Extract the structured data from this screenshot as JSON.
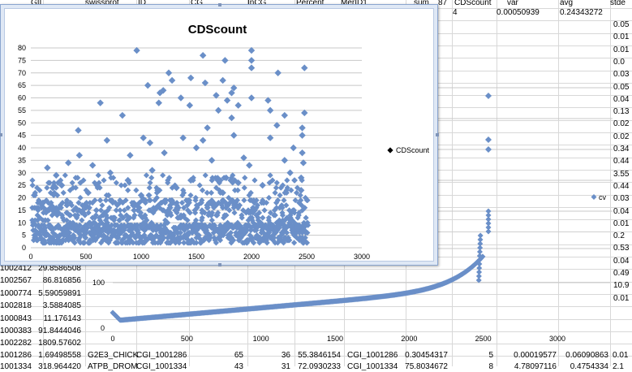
{
  "sheet": {
    "header_cells": [
      "GII",
      "swissprot",
      "ID",
      "CG",
      "InCG",
      "Percent",
      "MerID1",
      "sum",
      "87",
      "CDScount",
      "var",
      "avg",
      "stde"
    ],
    "top_row": {
      "cdscount": "4",
      "var": "0.00050939",
      "avg": "0.24343272"
    },
    "right_col": [
      "0.05",
      "0.01",
      "0.01",
      "0.0",
      "0.03",
      "0.05",
      "0.04",
      "0.13",
      "0.02",
      "0.02",
      "0.34",
      "0.44",
      "3.55",
      "0.44",
      "0.03",
      "0.04",
      "0.01",
      "0.2",
      "0.53",
      "0.04",
      "0.49",
      "10.9",
      "0.01"
    ],
    "left_rows": [
      {
        "a": "1002412",
        "b": "29.8586508"
      },
      {
        "a": "1002567",
        "b": "86.816856"
      },
      {
        "a": "1000774",
        "b": "5.59059891"
      },
      {
        "a": "1002818",
        "b": "3.5884085"
      },
      {
        "a": "1000843",
        "b": "11.176143"
      },
      {
        "a": "1000383",
        "b": "91.8444046"
      },
      {
        "a": "1002282",
        "b": "1809.57602"
      }
    ],
    "bottom_row": [
      "1001286",
      "1.69498558",
      "G2E3_CHICK",
      "CGI_1001286",
      "65",
      "36",
      "55.3846154",
      "CGI_1001286",
      "0.30454317",
      "5",
      "0.00019577",
      "0.06090863",
      "0.01"
    ],
    "bottom_row2": [
      "1001334",
      "318.964420",
      "ATPB_DROM",
      "CGI_1001334",
      "43",
      "31",
      "72.0930233",
      "CGI_1001334",
      "75.8034672",
      "8",
      "4.78097116",
      "0.4754334",
      "2.1"
    ]
  },
  "chart_data": [
    {
      "type": "scatter",
      "title": "CDScount",
      "series": [
        {
          "name": "CDScount",
          "color": "#6a8fc8"
        }
      ],
      "xlim": [
        0,
        3000
      ],
      "ylim": [
        0,
        80
      ],
      "x_ticks": [
        0,
        500,
        1000,
        1500,
        2000,
        2500,
        3000
      ],
      "y_ticks": [
        0,
        5,
        10,
        15,
        20,
        25,
        30,
        35,
        40,
        45,
        50,
        55,
        60,
        65,
        70,
        75,
        80
      ],
      "grid": true,
      "legend": "right",
      "n_points": 2500,
      "outliers": [
        [
          960,
          79
        ],
        [
          2000,
          79
        ],
        [
          1560,
          77
        ],
        [
          1760,
          75
        ],
        [
          2000,
          75
        ],
        [
          2480,
          72
        ],
        [
          2000,
          72
        ],
        [
          1250,
          70
        ],
        [
          2240,
          70
        ],
        [
          1450,
          68
        ],
        [
          1280,
          67
        ],
        [
          1740,
          67
        ],
        [
          1580,
          66
        ],
        [
          1060,
          65
        ],
        [
          1840,
          64
        ],
        [
          1200,
          63
        ],
        [
          1820,
          62
        ],
        [
          1170,
          62
        ],
        [
          1680,
          61
        ],
        [
          1360,
          60
        ],
        [
          2000,
          60
        ],
        [
          1780,
          59
        ],
        [
          2150,
          59
        ],
        [
          1160,
          58
        ],
        [
          630,
          58
        ],
        [
          1440,
          57
        ],
        [
          1880,
          57
        ],
        [
          1700,
          55
        ],
        [
          2170,
          55
        ],
        [
          2480,
          54
        ],
        [
          2300,
          53
        ],
        [
          830,
          53
        ],
        [
          1820,
          52
        ],
        [
          2230,
          49
        ],
        [
          2460,
          48
        ],
        [
          1600,
          48
        ],
        [
          430,
          47
        ],
        [
          1840,
          45
        ],
        [
          2460,
          45
        ],
        [
          1020,
          44
        ],
        [
          1380,
          44
        ],
        [
          2170,
          44
        ],
        [
          1560,
          43
        ],
        [
          690,
          43
        ],
        [
          1080,
          42
        ],
        [
          2380,
          40
        ],
        [
          1500,
          40
        ],
        [
          2460,
          38
        ],
        [
          1210,
          38
        ],
        [
          440,
          37
        ],
        [
          900,
          37
        ],
        [
          1930,
          36
        ],
        [
          2300,
          35
        ],
        [
          1640,
          35
        ],
        [
          2470,
          34
        ],
        [
          340,
          34
        ],
        [
          1980,
          33
        ],
        [
          560,
          33
        ],
        [
          150,
          32
        ],
        [
          1100,
          31
        ],
        [
          2350,
          30
        ],
        [
          720,
          30
        ],
        [
          230,
          29
        ],
        [
          2450,
          28
        ],
        [
          1770,
          28
        ],
        [
          880,
          27
        ],
        [
          1450,
          27
        ],
        [
          1880,
          26
        ],
        [
          280,
          25
        ],
        [
          2100,
          25
        ],
        [
          600,
          25
        ],
        [
          1320,
          24
        ],
        [
          200,
          24
        ],
        [
          2450,
          23
        ],
        [
          520,
          22
        ],
        [
          1740,
          22
        ],
        [
          1000,
          21
        ],
        [
          110,
          18
        ]
      ]
    },
    {
      "type": "scatter",
      "title": "",
      "series": [
        {
          "name": "cv",
          "color": "#6a8fc8"
        }
      ],
      "xlim": [
        0,
        3000
      ],
      "x_ticks": [
        0,
        500,
        1000,
        1500,
        2000,
        2500,
        3000
      ],
      "y_ticks_visible": [
        0,
        100
      ],
      "grid": true,
      "legend": "right",
      "n_points": 2500,
      "tail_outliers": [
        [
          2490,
          58
        ],
        [
          2490,
          40
        ],
        [
          2490,
          35
        ]
      ]
    }
  ]
}
